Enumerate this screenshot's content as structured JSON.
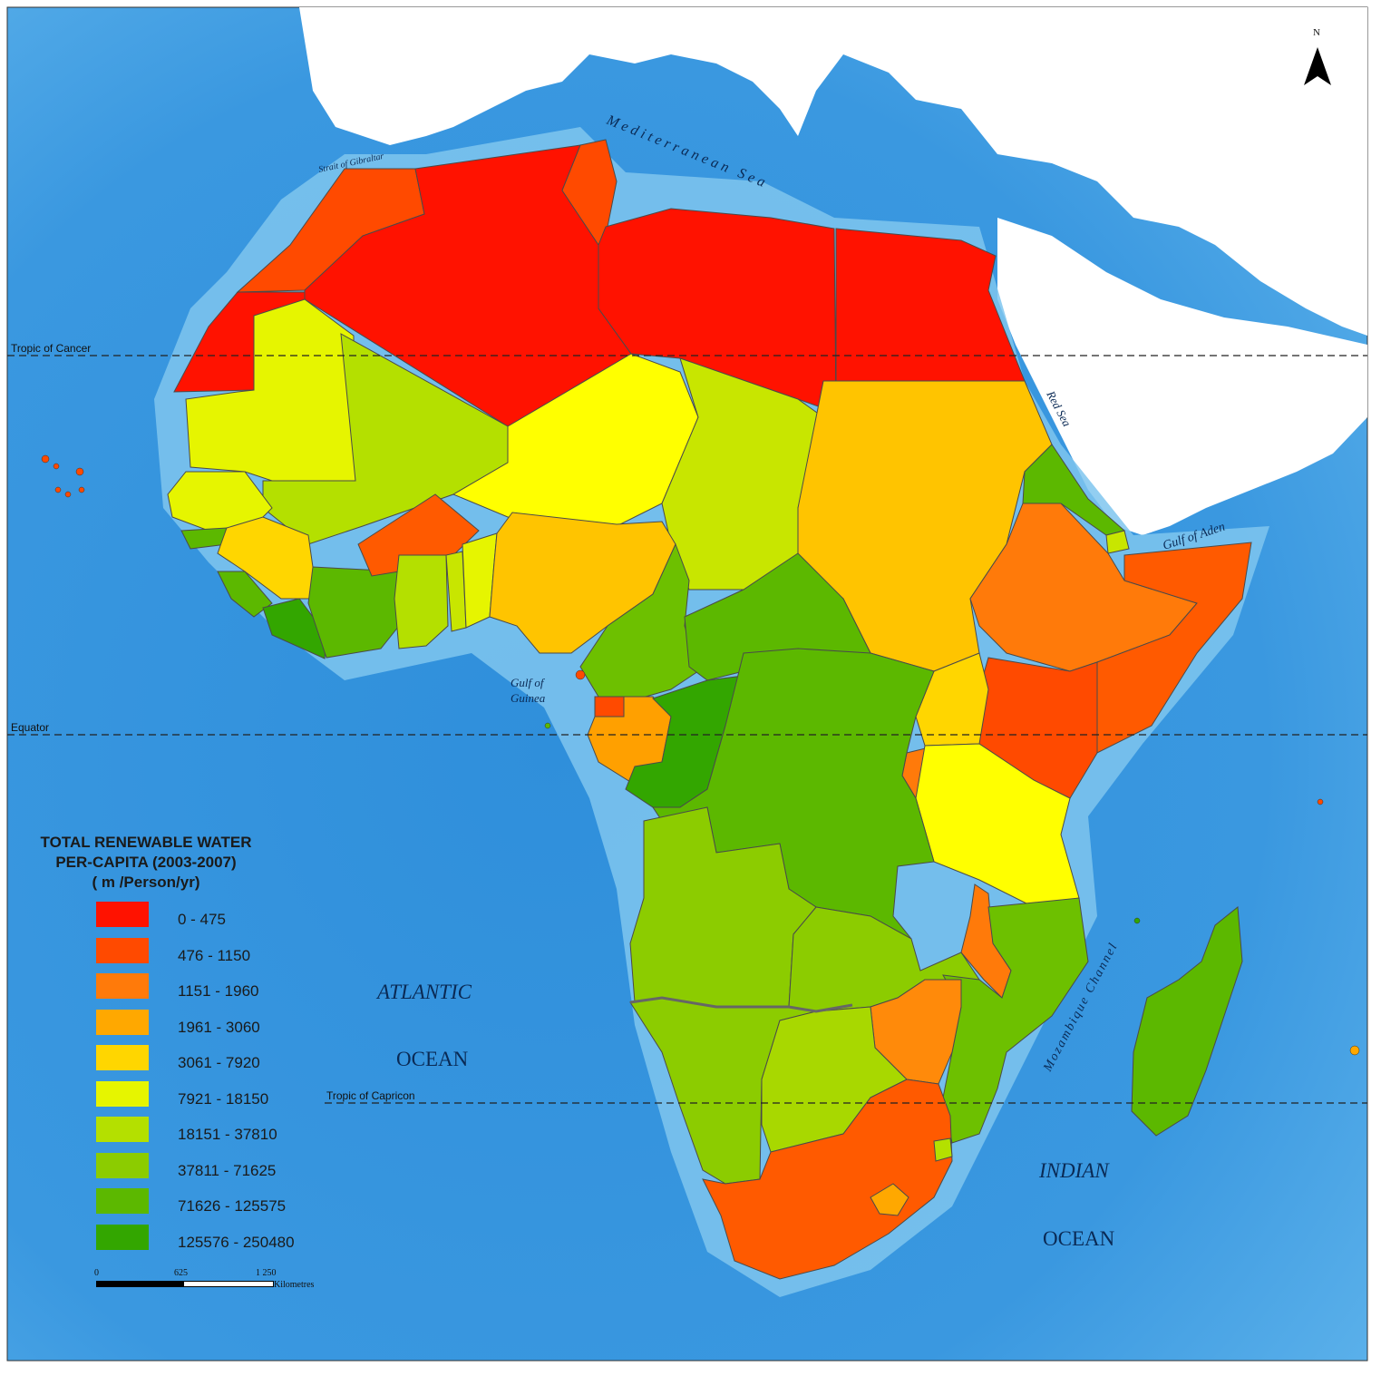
{
  "legend": {
    "title_line1": "TOTAL RENEWABLE WATER",
    "title_line2": "PER-CAPITA (2003-2007)",
    "title_line3": "( m /Person/yr)",
    "classes": [
      {
        "label": "0 - 475",
        "color": "#ff1200"
      },
      {
        "label": "476 - 1150",
        "color": "#ff4a00"
      },
      {
        "label": "1151 - 1960",
        "color": "#ff7a0a"
      },
      {
        "label": "1961 - 3060",
        "color": "#ffa800"
      },
      {
        "label": "3061 - 7920",
        "color": "#ffd600"
      },
      {
        "label": "7921 - 18150",
        "color": "#e6f500"
      },
      {
        "label": "18151 - 37810",
        "color": "#b4e000"
      },
      {
        "label": "37811 - 71625",
        "color": "#8ccc00"
      },
      {
        "label": "71626 - 125575",
        "color": "#5cb800"
      },
      {
        "label": "125576 - 250480",
        "color": "#33a600"
      }
    ]
  },
  "labels": {
    "mediterranean": "Mediterranean Sea",
    "gibraltar": "Strait of Gibraltar",
    "red_sea": "Red Sea",
    "gulf_aden": "Gulf of Aden",
    "gulf_guinea_1": "Gulf of",
    "gulf_guinea_2": "Guinea",
    "atlantic_1": "ATLANTIC",
    "atlantic_2": "OCEAN",
    "indian_1": "INDIAN",
    "indian_2": "OCEAN",
    "mozambique": "Mozambique Channel",
    "tropic_cancer": "Tropic of Cancer",
    "equator": "Equator",
    "tropic_capricorn": "Tropic of Capricon"
  },
  "scale": {
    "tick_0": "0",
    "tick_1": "625",
    "tick_2": "1 250",
    "unit": "Kilometres"
  },
  "north": "N",
  "colors": {
    "ocean": "#3f9ce0",
    "shelf": "#7cc4ee",
    "land_outside": "#ffffff",
    "border": "#4a4a4a"
  }
}
